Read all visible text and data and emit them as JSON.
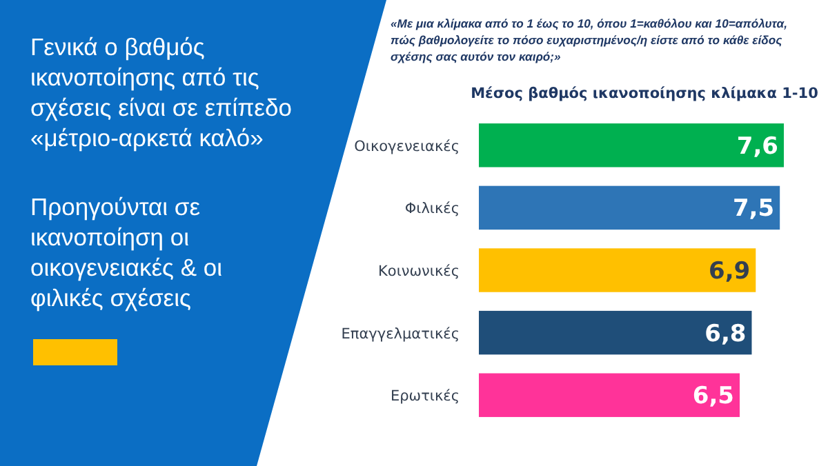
{
  "chart_data": {
    "type": "bar",
    "orientation": "horizontal",
    "title": "Γενικά ο βαθμός ικανοποίησης από τις σχέσεις είναι σε επίπεδο «μέτριο-αρκετά καλό»",
    "subtitle": "Προηγούνται σε ικανοποίηση οι οικογενειακές & οι φιλικές σχέσεις",
    "annotations": [
      "«Με μια κλίμακα από το 1 έως το 10, όπου 1=καθόλου και 10=απόλυτα, πώς βαθμολογείτε το πόσο ευχαριστημένος/η είστε από το κάθε είδος σχέσης σας αυτόν τον καιρό;»"
    ],
    "xlabel": "Μέσος βαθμός  ικανοποίησης κλίμακα 1-10",
    "categories": [
      "Οικογενειακές",
      "Φιλικές",
      "Κοινωνικές",
      "Επαγγελματικές",
      "Ερωτικές"
    ],
    "values": [
      7.6,
      7.5,
      6.9,
      6.8,
      6.5
    ],
    "colors": [
      "#00b050",
      "#2e75b6",
      "#ffc000",
      "#1f4e79",
      "#ff3399"
    ],
    "value_labels": [
      "7,6",
      "7,5",
      "6,9",
      "6,8",
      "6,5"
    ],
    "tick_labels": "y"
  }
}
